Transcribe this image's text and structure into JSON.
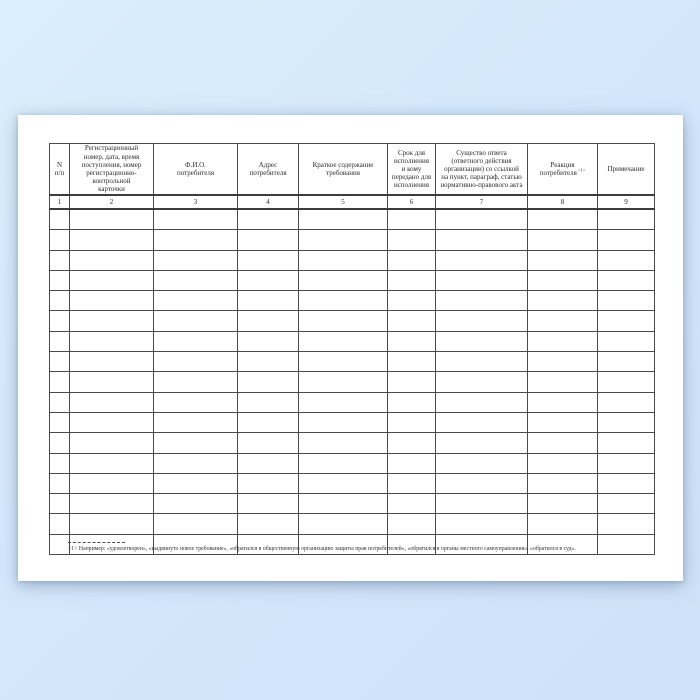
{
  "table": {
    "columns": [
      {
        "num": "1",
        "label": "N\nп/п"
      },
      {
        "num": "2",
        "label": "Регистрационный\nномер, дата, время\nпоступления, номер\nрегистрационно-\nконтрольной\nкарточки"
      },
      {
        "num": "3",
        "label": "Ф.И.О.\nпотребителя"
      },
      {
        "num": "4",
        "label": "Адрес\nпотребителя"
      },
      {
        "num": "5",
        "label": "Краткое содержание\nтребования"
      },
      {
        "num": "6",
        "label": "Срок для\nисполнения\nи кому\nпередано для\nисполнения"
      },
      {
        "num": "7",
        "label": "Существо ответа\n(ответного действия\nорганизации) со ссылкой\nна пункт, параграф, статью\nнормативно-правового акта"
      },
      {
        "num": "8",
        "label": "Реакция\nпотребителя",
        "sup": "<1>"
      },
      {
        "num": "9",
        "label": "Примечание"
      }
    ],
    "empty_row_count": 17,
    "cell_values": ""
  },
  "footnote": {
    "text": "<1> Например: «удовлетворен», «выдвинуто новое требование», «обратился в общественную организацию защиты прав потребителей», «обратился в органы местного самоуправления», «обратился в суд»."
  },
  "colors": {
    "background_blue": "#d4e8fb",
    "paper": "#ffffff",
    "table_border": "#4a4a4a",
    "text": "#2b2b2b"
  }
}
